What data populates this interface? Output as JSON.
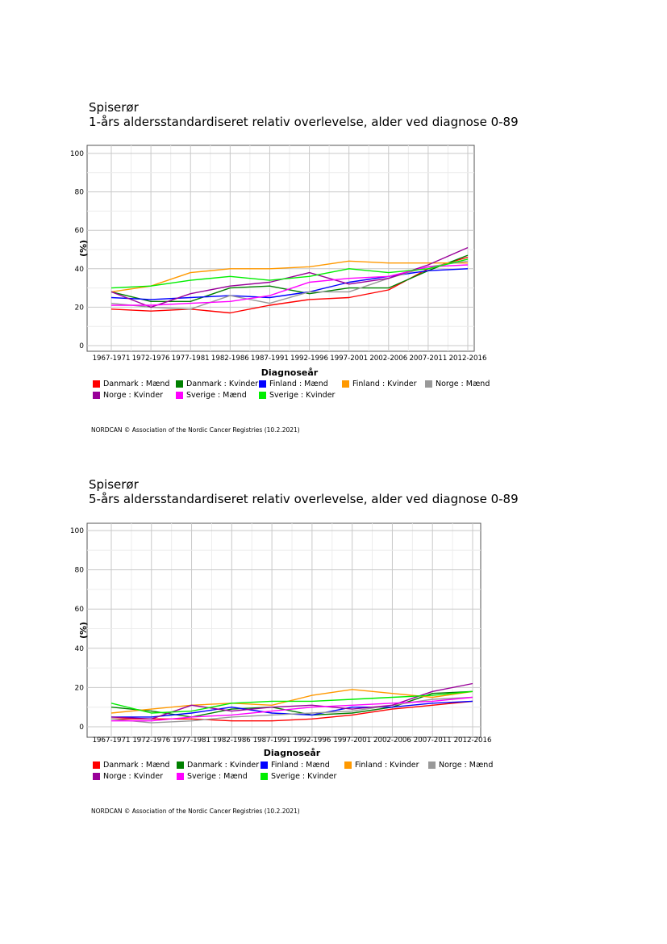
{
  "colors": {
    "Danmark : Mænd": "#ff0000",
    "Danmark : Kvinder": "#008000",
    "Finland : Mænd": "#0000ff",
    "Finland : Kvinder": "#ff9900",
    "Norge : Mænd": "#999999",
    "Norge : Kvinder": "#990099",
    "Sverige : Mænd": "#ff00ff",
    "Sverige : Kvinder": "#00ee00"
  },
  "charts": [
    {
      "title1": "Spiserør",
      "title2": "1-års aldersstandardiseret relativ overlevelse, alder ved diagnose 0-89",
      "footer": "NORDCAN © Association of the Nordic Cancer Registries (10.2.2021)"
    },
    {
      "title1": "Spiserør",
      "title2": "5-års aldersstandardiseret relativ overlevelse, alder ved diagnose 0-89",
      "footer": "NORDCAN © Association of the Nordic Cancer Registries (10.2.2021)"
    }
  ],
  "chart_data": [
    {
      "type": "line",
      "title": "1-års aldersstandardiseret relativ overlevelse, alder ved diagnose 0-89",
      "xlabel": "Diagnoseår",
      "ylabel": "(%)",
      "ylim": [
        0,
        100
      ],
      "yticks": [
        0,
        20,
        40,
        60,
        80,
        100
      ],
      "grid": true,
      "legend_position": "bottom",
      "categories": [
        "1967-1971",
        "1972-1976",
        "1977-1981",
        "1982-1986",
        "1987-1991",
        "1992-1996",
        "1997-2001",
        "2002-2006",
        "2007-2011",
        "2012-2016"
      ],
      "series": [
        {
          "name": "Danmark : Mænd",
          "values": [
            19,
            18,
            19,
            17,
            21,
            24,
            25,
            29,
            40,
            46
          ]
        },
        {
          "name": "Danmark : Kvinder",
          "values": [
            28,
            23,
            23,
            30,
            31,
            27,
            30,
            30,
            39,
            47
          ]
        },
        {
          "name": "Finland : Mænd",
          "values": [
            25,
            24,
            25,
            26,
            25,
            28,
            33,
            36,
            39,
            40
          ]
        },
        {
          "name": "Finland : Kvinder",
          "values": [
            28,
            31,
            38,
            40,
            40,
            41,
            44,
            43,
            43,
            43
          ]
        },
        {
          "name": "Norge : Mænd",
          "values": [
            22,
            20,
            19,
            26,
            22,
            28,
            28,
            35,
            41,
            44
          ]
        },
        {
          "name": "Norge : Kvinder",
          "values": [
            28,
            20,
            27,
            31,
            33,
            38,
            32,
            35,
            42,
            51
          ]
        },
        {
          "name": "Sverige : Mænd",
          "values": [
            21,
            21,
            22,
            23,
            26,
            33,
            35,
            36,
            41,
            42
          ]
        },
        {
          "name": "Sverige : Kvinder",
          "values": [
            30,
            31,
            34,
            36,
            34,
            36,
            40,
            38,
            40,
            45
          ]
        }
      ]
    },
    {
      "type": "line",
      "title": "5-års aldersstandardiseret relativ overlevelse, alder ved diagnose 0-89",
      "xlabel": "Diagnoseår",
      "ylabel": "(%)",
      "ylim": [
        0,
        100
      ],
      "yticks": [
        0,
        20,
        40,
        60,
        80,
        100
      ],
      "grid": true,
      "legend_position": "bottom",
      "categories": [
        "1967-1971",
        "1972-1976",
        "1977-1981",
        "1982-1986",
        "1987-1991",
        "1992-1996",
        "1997-2001",
        "2002-2006",
        "2007-2011",
        "2012-2016"
      ],
      "series": [
        {
          "name": "Danmark : Mænd",
          "values": [
            4,
            4,
            4,
            3,
            3,
            4,
            6,
            9,
            11,
            13
          ]
        },
        {
          "name": "Danmark : Kvinder",
          "values": [
            10,
            8,
            5,
            9,
            10,
            6,
            7,
            10,
            17,
            18
          ]
        },
        {
          "name": "Finland : Mænd",
          "values": [
            5,
            5,
            7,
            10,
            7,
            6,
            10,
            10,
            12,
            13
          ]
        },
        {
          "name": "Finland : Kvinder",
          "values": [
            7,
            9,
            11,
            12,
            11,
            16,
            19,
            17,
            15,
            18
          ]
        },
        {
          "name": "Norge : Mænd",
          "values": [
            4,
            2,
            3,
            5,
            6,
            7,
            8,
            11,
            14,
            15
          ]
        },
        {
          "name": "Norge : Kvinder",
          "values": [
            5,
            4,
            11,
            8,
            10,
            11,
            9,
            11,
            18,
            22
          ]
        },
        {
          "name": "Sverige : Mænd",
          "values": [
            3,
            3,
            5,
            6,
            8,
            10,
            11,
            12,
            13,
            15
          ]
        },
        {
          "name": "Sverige : Kvinder",
          "values": [
            12,
            7,
            8,
            12,
            13,
            13,
            14,
            15,
            16,
            18
          ]
        }
      ]
    }
  ]
}
